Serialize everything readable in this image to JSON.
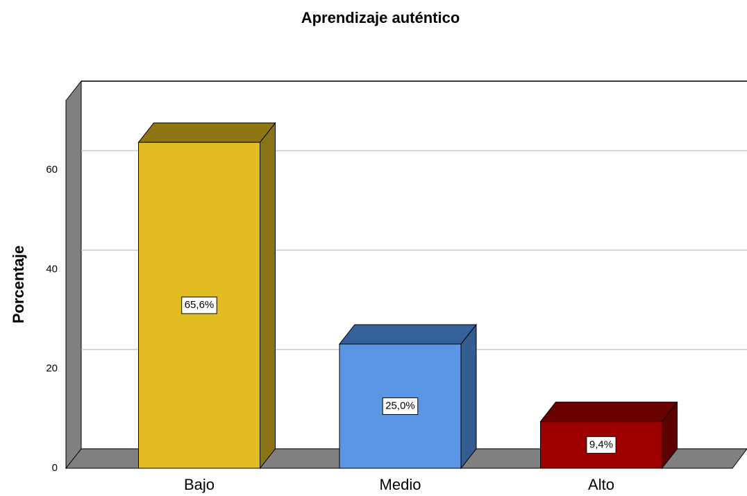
{
  "chart_data": {
    "type": "bar3d",
    "title": "Aprendizaje auténtico",
    "y_label": "Porcentaje",
    "categories": [
      "Bajo",
      "Medio",
      "Alto"
    ],
    "values": [
      65.6,
      25.0,
      9.4
    ],
    "value_labels": [
      "65,6%",
      "25,0%",
      "9,4%"
    ],
    "colors": [
      "#e1bc22",
      "#5b96e4",
      "#9c0000"
    ],
    "side_colors": [
      "#8a7216",
      "#335c91",
      "#5c0000"
    ],
    "top_colors": [
      "#8f7613",
      "#36609a",
      "#6a0000"
    ],
    "ylim": [
      0,
      74
    ],
    "yticks": [
      0,
      20,
      40,
      60
    ],
    "grid": true
  }
}
